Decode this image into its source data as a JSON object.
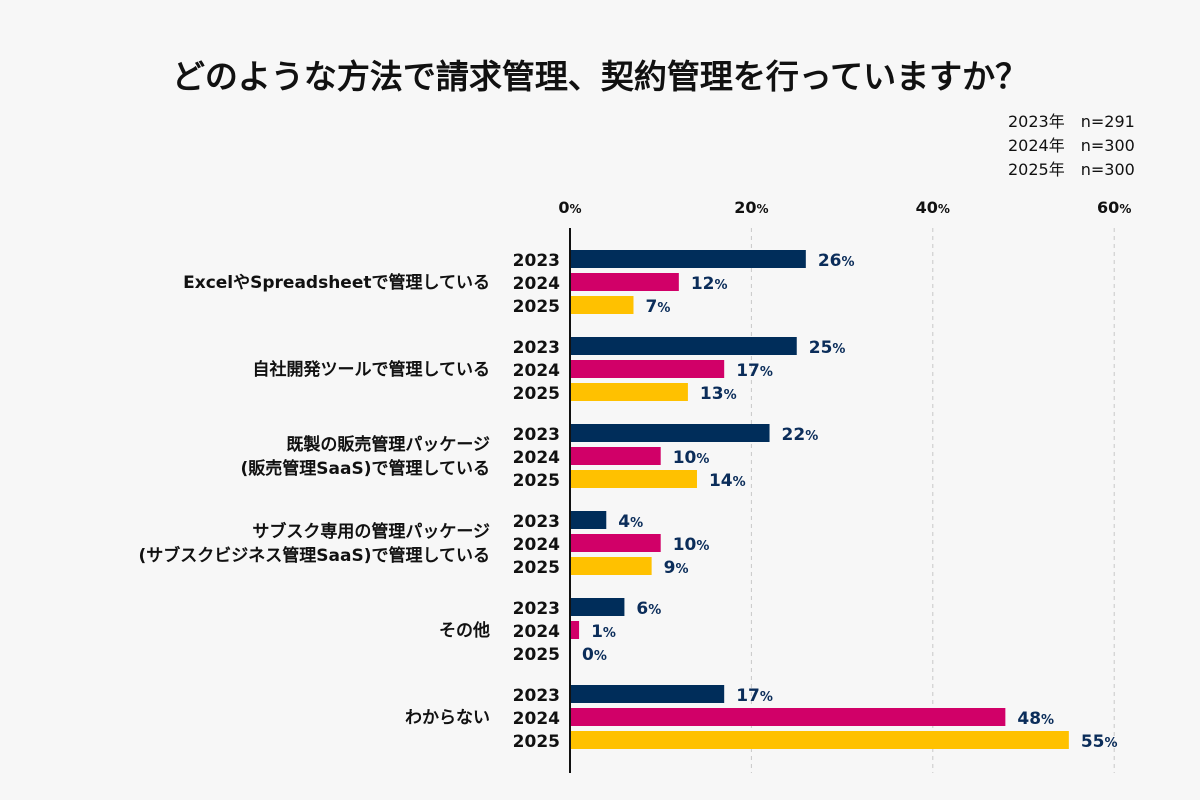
{
  "chart_data": {
    "type": "bar",
    "orientation": "horizontal",
    "title": "どのような方法で請求管理、契約管理を行っていますか？",
    "sample_sizes": [
      "2023年　n=291",
      "2024年　n=300",
      "2025年　n=300"
    ],
    "xlim": [
      0,
      60
    ],
    "x_ticks": [
      "0%",
      "20%",
      "40%",
      "60%"
    ],
    "x_tick_values": [
      0,
      20,
      40,
      60
    ],
    "grid": "vertical dashed",
    "value_suffix": "%",
    "categories": [
      [
        "ExcelやSpreadsheetで管理している"
      ],
      [
        "自社開発ツールで管理している"
      ],
      [
        "既製の販売管理パッケージ",
        "(販売管理SaaS)で管理している"
      ],
      [
        "サブスク専用の管理パッケージ",
        "(サブスクビジネス管理SaaS)で管理している"
      ],
      [
        "その他"
      ],
      [
        "わからない"
      ]
    ],
    "series": [
      {
        "name": "2023",
        "color": "#002d5a",
        "values": [
          26,
          25,
          22,
          4,
          6,
          17
        ]
      },
      {
        "name": "2024",
        "color": "#d10068",
        "values": [
          12,
          17,
          10,
          10,
          1,
          48
        ]
      },
      {
        "name": "2025",
        "color": "#ffc100",
        "values": [
          7,
          13,
          14,
          9,
          0,
          55
        ]
      }
    ]
  }
}
